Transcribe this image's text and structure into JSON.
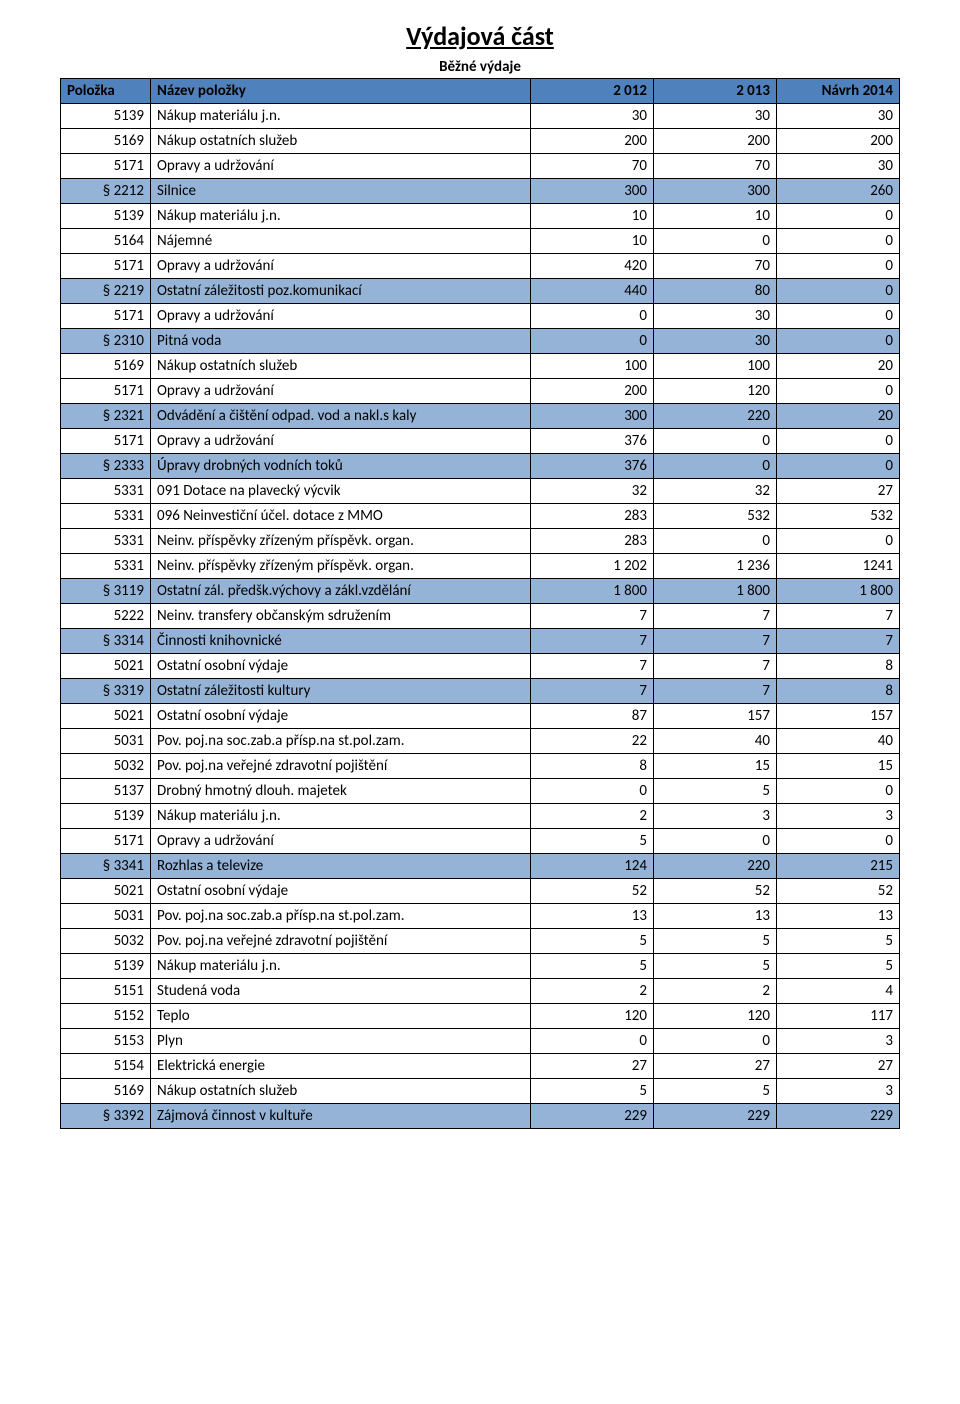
{
  "title": "Výdajová část",
  "sub_heading": "Běžné výdaje",
  "colors": {
    "header_bg": "#4f81bd",
    "section_bg": "#95b3d7",
    "row_bg": "#ffffff",
    "border": "#000000",
    "text": "#000000"
  },
  "columns": {
    "code": "Položka",
    "name": "Název položky",
    "y1": "2 012",
    "y2": "2 013",
    "y3": "Návrh 2014"
  },
  "rows": [
    {
      "t": "row",
      "code": "5139",
      "name": "Nákup materiálu j.n.",
      "v": [
        "30",
        "30",
        "30"
      ]
    },
    {
      "t": "row",
      "code": "5169",
      "name": "Nákup ostatních služeb",
      "v": [
        "200",
        "200",
        "200"
      ]
    },
    {
      "t": "row",
      "code": "5171",
      "name": "Opravy a udržování",
      "v": [
        "70",
        "70",
        "30"
      ]
    },
    {
      "t": "sec",
      "code": "§ 2212",
      "name": "Silnice",
      "v": [
        "300",
        "300",
        "260"
      ]
    },
    {
      "t": "row",
      "code": "5139",
      "name": "Nákup materiálu j.n.",
      "v": [
        "10",
        "10",
        "0"
      ]
    },
    {
      "t": "row",
      "code": "5164",
      "name": "Nájemné",
      "v": [
        "10",
        "0",
        "0"
      ]
    },
    {
      "t": "row",
      "code": "5171",
      "name": "Opravy a udržování",
      "v": [
        "420",
        "70",
        "0"
      ]
    },
    {
      "t": "sec",
      "code": "§ 2219",
      "name": "Ostatní záležitosti poz.komunikací",
      "v": [
        "440",
        "80",
        "0"
      ]
    },
    {
      "t": "row",
      "code": "5171",
      "name": "Opravy a udržování",
      "v": [
        "0",
        "30",
        "0"
      ]
    },
    {
      "t": "sec",
      "code": "§ 2310",
      "name": "Pitná voda",
      "v": [
        "0",
        "30",
        "0"
      ]
    },
    {
      "t": "row",
      "code": "5169",
      "name": "Nákup ostatních služeb",
      "v": [
        "100",
        "100",
        "20"
      ]
    },
    {
      "t": "row",
      "code": "5171",
      "name": "Opravy a udržování",
      "v": [
        "200",
        "120",
        "0"
      ]
    },
    {
      "t": "sec",
      "code": "§ 2321",
      "name": "Odvádění a čištění odpad. vod a nakl.s kaly",
      "v": [
        "300",
        "220",
        "20"
      ]
    },
    {
      "t": "row",
      "code": "5171",
      "name": "Opravy a udržování",
      "v": [
        "376",
        "0",
        "0"
      ]
    },
    {
      "t": "sec",
      "code": "§ 2333",
      "name": "Úpravy drobných vodních toků",
      "v": [
        "376",
        "0",
        "0"
      ]
    },
    {
      "t": "row",
      "code": "5331",
      "name": "091 Dotace na plavecký výcvik",
      "v": [
        "32",
        "32",
        "27"
      ]
    },
    {
      "t": "row",
      "code": "5331",
      "name": "096 Neinvestiční účel. dotace z MMO",
      "v": [
        "283",
        "532",
        "532"
      ]
    },
    {
      "t": "row",
      "code": "5331",
      "name": "Neinv. příspěvky zřízeným příspěvk. organ.",
      "v": [
        "283",
        "0",
        "0"
      ]
    },
    {
      "t": "row",
      "code": "5331",
      "name": "Neinv. příspěvky zřízeným příspěvk. organ.",
      "v": [
        "1 202",
        "1 236",
        "1241"
      ]
    },
    {
      "t": "sec",
      "code": "§ 3119",
      "name": "Ostatní zál. předšk.výchovy a zákl.vzdělání",
      "v": [
        "1 800",
        "1 800",
        "1 800"
      ]
    },
    {
      "t": "row",
      "code": "5222",
      "name": "Neinv. transfery občanským sdružením",
      "v": [
        "7",
        "7",
        "7"
      ]
    },
    {
      "t": "sec",
      "code": "§ 3314",
      "name": "Činnosti knihovnické",
      "v": [
        "7",
        "7",
        "7"
      ]
    },
    {
      "t": "row",
      "code": "5021",
      "name": "Ostatní osobní výdaje",
      "v": [
        "7",
        "7",
        "8"
      ]
    },
    {
      "t": "sec",
      "code": "§ 3319",
      "name": "Ostatní záležitosti kultury",
      "v": [
        "7",
        "7",
        "8"
      ]
    },
    {
      "t": "row",
      "code": "5021",
      "name": "Ostatní osobní výdaje",
      "v": [
        "87",
        "157",
        "157"
      ]
    },
    {
      "t": "row",
      "code": "5031",
      "name": "Pov. poj.na soc.zab.a přísp.na st.pol.zam.",
      "v": [
        "22",
        "40",
        "40"
      ]
    },
    {
      "t": "row",
      "code": "5032",
      "name": "Pov. poj.na veřejné zdravotní pojištění",
      "v": [
        "8",
        "15",
        "15"
      ]
    },
    {
      "t": "row",
      "code": "5137",
      "name": "Drobný hmotný dlouh. majetek",
      "v": [
        "0",
        "5",
        "0"
      ]
    },
    {
      "t": "row",
      "code": "5139",
      "name": "Nákup materiálu j.n.",
      "v": [
        "2",
        "3",
        "3"
      ]
    },
    {
      "t": "row",
      "code": "5171",
      "name": "Opravy a udržování",
      "v": [
        "5",
        "0",
        "0"
      ]
    },
    {
      "t": "sec",
      "code": "§ 3341",
      "name": "Rozhlas a televize",
      "v": [
        "124",
        "220",
        "215"
      ]
    },
    {
      "t": "row",
      "code": "5021",
      "name": "Ostatní osobní výdaje",
      "v": [
        "52",
        "52",
        "52"
      ]
    },
    {
      "t": "row",
      "code": "5031",
      "name": "Pov. poj.na soc.zab.a přísp.na st.pol.zam.",
      "v": [
        "13",
        "13",
        "13"
      ]
    },
    {
      "t": "row",
      "code": "5032",
      "name": "Pov. poj.na veřejné zdravotní pojištění",
      "v": [
        "5",
        "5",
        "5"
      ]
    },
    {
      "t": "row",
      "code": "5139",
      "name": "Nákup materiálu j.n.",
      "v": [
        "5",
        "5",
        "5"
      ]
    },
    {
      "t": "row",
      "code": "5151",
      "name": "Studená voda",
      "v": [
        "2",
        "2",
        "4"
      ]
    },
    {
      "t": "row",
      "code": "5152",
      "name": "Teplo",
      "v": [
        "120",
        "120",
        "117"
      ]
    },
    {
      "t": "row",
      "code": "5153",
      "name": "Plyn",
      "v": [
        "0",
        "0",
        "3"
      ]
    },
    {
      "t": "row",
      "code": "5154",
      "name": "Elektrická energie",
      "v": [
        "27",
        "27",
        "27"
      ]
    },
    {
      "t": "row",
      "code": "5169",
      "name": "Nákup ostatních služeb",
      "v": [
        "5",
        "5",
        "3"
      ]
    },
    {
      "t": "sec",
      "code": "§ 3392",
      "name": "Zájmová činnost v kultuře",
      "v": [
        "229",
        "229",
        "229"
      ]
    }
  ]
}
